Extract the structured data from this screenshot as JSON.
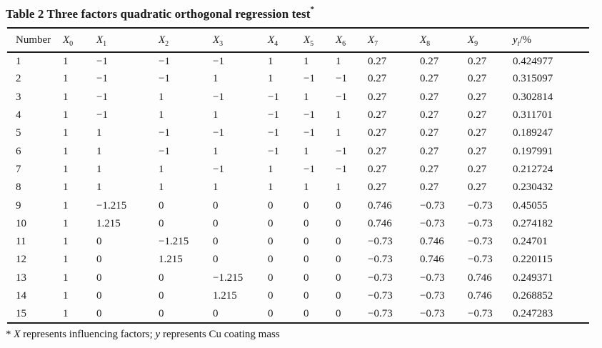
{
  "title": {
    "text": "Table 2 Three factors quadratic orthogonal regression test",
    "superscript": "*"
  },
  "table": {
    "columns": [
      {
        "id": "number",
        "base": "Number",
        "sub": "",
        "suffix": "",
        "italic_base": false,
        "italic_sub": false
      },
      {
        "id": "x0",
        "base": "X",
        "sub": "0",
        "suffix": "",
        "italic_base": true,
        "italic_sub": false
      },
      {
        "id": "x1",
        "base": "X",
        "sub": "1",
        "suffix": "",
        "italic_base": true,
        "italic_sub": false
      },
      {
        "id": "x2",
        "base": "X",
        "sub": "2",
        "suffix": "",
        "italic_base": true,
        "italic_sub": false
      },
      {
        "id": "x3",
        "base": "X",
        "sub": "3",
        "suffix": "",
        "italic_base": true,
        "italic_sub": false
      },
      {
        "id": "x4",
        "base": "X",
        "sub": "4",
        "suffix": "",
        "italic_base": true,
        "italic_sub": false
      },
      {
        "id": "x5",
        "base": "X",
        "sub": "5",
        "suffix": "",
        "italic_base": true,
        "italic_sub": false
      },
      {
        "id": "x6",
        "base": "X",
        "sub": "6",
        "suffix": "",
        "italic_base": true,
        "italic_sub": false
      },
      {
        "id": "x7",
        "base": "X",
        "sub": "7",
        "suffix": "",
        "italic_base": true,
        "italic_sub": false
      },
      {
        "id": "x8",
        "base": "X",
        "sub": "8",
        "suffix": "",
        "italic_base": true,
        "italic_sub": false
      },
      {
        "id": "x9",
        "base": "X",
        "sub": "9",
        "suffix": "",
        "italic_base": true,
        "italic_sub": false
      },
      {
        "id": "y",
        "base": "y",
        "sub": "i",
        "suffix": "/%",
        "italic_base": true,
        "italic_sub": true
      }
    ],
    "rows": [
      [
        "1",
        "1",
        "−1",
        "−1",
        "−1",
        "1",
        "1",
        "1",
        "0.27",
        "0.27",
        "0.27",
        "0.424977"
      ],
      [
        "2",
        "1",
        "−1",
        "−1",
        "1",
        "1",
        "−1",
        "−1",
        "0.27",
        "0.27",
        "0.27",
        "0.315097"
      ],
      [
        "3",
        "1",
        "−1",
        "1",
        "−1",
        "−1",
        "1",
        "−1",
        "0.27",
        "0.27",
        "0.27",
        "0.302814"
      ],
      [
        "4",
        "1",
        "−1",
        "1",
        "1",
        "−1",
        "−1",
        "1",
        "0.27",
        "0.27",
        "0.27",
        "0.311701"
      ],
      [
        "5",
        "1",
        "1",
        "−1",
        "−1",
        "−1",
        "−1",
        "1",
        "0.27",
        "0.27",
        "0.27",
        "0.189247"
      ],
      [
        "6",
        "1",
        "1",
        "−1",
        "1",
        "−1",
        "1",
        "−1",
        "0.27",
        "0.27",
        "0.27",
        "0.197991"
      ],
      [
        "7",
        "1",
        "1",
        "1",
        "−1",
        "1",
        "−1",
        "−1",
        "0.27",
        "0.27",
        "0.27",
        "0.212724"
      ],
      [
        "8",
        "1",
        "1",
        "1",
        "1",
        "1",
        "1",
        "1",
        "0.27",
        "0.27",
        "0.27",
        "0.230432"
      ],
      [
        "9",
        "1",
        "−1.215",
        "0",
        "0",
        "0",
        "0",
        "0",
        "0.746",
        "−0.73",
        "−0.73",
        "0.45055"
      ],
      [
        "10",
        "1",
        "1.215",
        "0",
        "0",
        "0",
        "0",
        "0",
        "0.746",
        "−0.73",
        "−0.73",
        "0.274182"
      ],
      [
        "11",
        "1",
        "0",
        "−1.215",
        "0",
        "0",
        "0",
        "0",
        "−0.73",
        "0.746",
        "−0.73",
        "0.24701"
      ],
      [
        "12",
        "1",
        "0",
        "1.215",
        "0",
        "0",
        "0",
        "0",
        "−0.73",
        "0.746",
        "−0.73",
        "0.220115"
      ],
      [
        "13",
        "1",
        "0",
        "0",
        "−1.215",
        "0",
        "0",
        "0",
        "−0.73",
        "−0.73",
        "0.746",
        "0.249371"
      ],
      [
        "14",
        "1",
        "0",
        "0",
        "1.215",
        "0",
        "0",
        "0",
        "−0.73",
        "−0.73",
        "0.746",
        "0.268852"
      ],
      [
        "15",
        "1",
        "0",
        "0",
        "0",
        "0",
        "0",
        "0",
        "−0.73",
        "−0.73",
        "−0.73",
        "0.247283"
      ]
    ]
  },
  "footnote": {
    "segments": [
      {
        "text": "* ",
        "italic": false
      },
      {
        "text": "X",
        "italic": true
      },
      {
        "text": " represents influencing factors; ",
        "italic": false
      },
      {
        "text": "y",
        "italic": true
      },
      {
        "text": " represents Cu coating mass",
        "italic": false
      }
    ]
  }
}
